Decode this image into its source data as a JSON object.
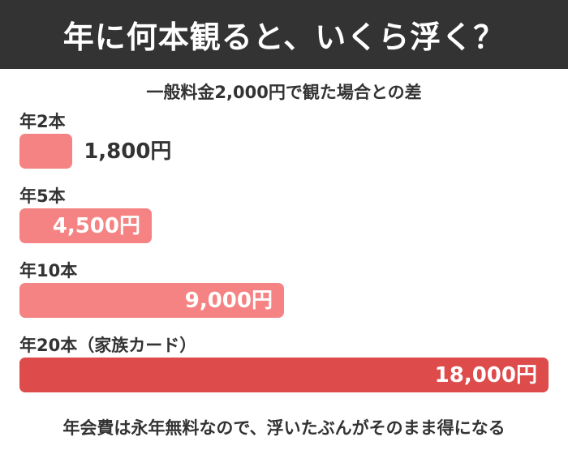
{
  "header": {
    "title": "年に何本観ると、いくら浮く？"
  },
  "footer": {
    "note": "年会費は永年無料なので、浮いたぶんがそのまま得になる"
  },
  "chart_data": {
    "type": "bar",
    "orientation": "horizontal",
    "title": "一般料金2,000円で観た場合との差",
    "categories": [
      "年2本",
      "年5本",
      "年10本",
      "年20本（家族カード）"
    ],
    "values": [
      1800,
      4500,
      9000,
      18000
    ],
    "value_labels": [
      "1,800円",
      "4,500円",
      "9,000円",
      "18,000円"
    ],
    "colors": [
      "#f58383",
      "#f58383",
      "#f58383",
      "#dd4b4b"
    ],
    "xlim": [
      0,
      18000
    ],
    "grid": false,
    "legend": "none"
  }
}
